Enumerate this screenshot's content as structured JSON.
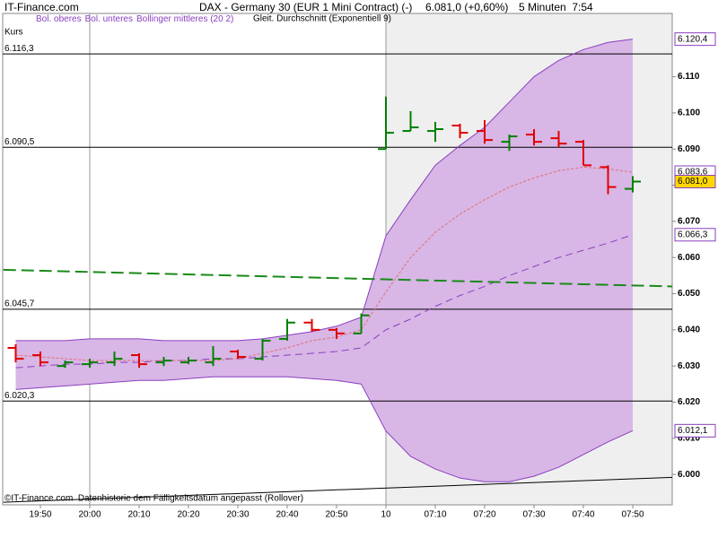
{
  "chart_data": {
    "type": "ohlc",
    "site": "IT-Finance.com",
    "title": "DAX - Germany 30 (EUR 1 Mini Contract) (-)",
    "quote": "6.081,0 (+0,60%)",
    "timeframe": "5 Minuten  7:54",
    "price_label": "Kurs",
    "footnote": "©IT-Finance.com  Datenhistorie dem Fälligkeitsdatum angepasst (Rollover)",
    "categories": [
      null,
      "19:50",
      null,
      "20:00",
      null,
      "20:10",
      null,
      "20:20",
      null,
      "20:30",
      null,
      "20:40",
      null,
      "20:50",
      null,
      "10",
      null,
      "07:10",
      null,
      "07:20",
      null,
      "07:30",
      null,
      "07:40",
      null,
      "07:50"
    ],
    "open": [
      6035,
      6033,
      6030,
      6030.5,
      6031,
      6033,
      6031,
      6031,
      6031,
      6034,
      6032,
      6037.5,
      6042,
      6040,
      6039,
      6090,
      6095,
      6095,
      6096.5,
      6095,
      6092,
      6094,
      6093,
      6092,
      6085,
      6079
    ],
    "high": [
      6036,
      6034,
      6031.5,
      6032,
      6034,
      6033.5,
      6032.5,
      6032.5,
      6035.5,
      6034.5,
      6037.5,
      6043,
      6043,
      6040.5,
      6044.5,
      6104.5,
      6100.5,
      6097.5,
      6097,
      6098,
      6094,
      6095.5,
      6095,
      6092.5,
      6085.5,
      6082.5
    ],
    "low": [
      6031,
      6030,
      6029.5,
      6029.5,
      6030,
      6029.5,
      6030,
      6030.5,
      6030,
      6032,
      6031.5,
      6037,
      6039.5,
      6037.5,
      6039,
      6090,
      6095,
      6092,
      6093,
      6091.5,
      6089.5,
      6091,
      6090.5,
      6085.5,
      6077.5,
      6078
    ],
    "close": [
      6032,
      6031,
      6031,
      6031,
      6032,
      6030.5,
      6031.5,
      6031.5,
      6032,
      6032.5,
      6037,
      6042,
      6040,
      6039,
      6044,
      6094.5,
      6096,
      6095.5,
      6094.5,
      6092.5,
      6093.5,
      6092,
      6091.5,
      6085.5,
      6079.5,
      6081
    ],
    "up_color": "#008000",
    "down_color": "#e00000",
    "band_fill": "#d8b6e6",
    "series": [
      {
        "name": "Bol. oberes",
        "color": "#8a3fc0",
        "dash": "none",
        "values": [
          6037,
          6037,
          6037,
          6037.5,
          6037.5,
          6037.5,
          6037,
          6037,
          6037,
          6037,
          6037.5,
          6038.5,
          6039.5,
          6041,
          6043.5,
          6066,
          6076,
          6085.5,
          6091,
          6096,
          6103,
          6110,
          6114.5,
          6117.5,
          6119.5,
          6120.4
        ]
      },
      {
        "name": "Bol. unteres",
        "color": "#8a3fc0",
        "dash": "none",
        "values": [
          6023.5,
          6024,
          6024.5,
          6025,
          6025.5,
          6026,
          6026,
          6026.5,
          6027,
          6027,
          6027,
          6027,
          6026.5,
          6026,
          6025,
          6012,
          6005,
          6001.5,
          5999,
          5998,
          5998,
          5999.5,
          6002,
          6005.5,
          6009,
          6012.1
        ]
      },
      {
        "name": "Bollinger mittleres (20 2)",
        "color": "#8a3fc0",
        "dash": "8,5",
        "values": [
          6029.5,
          6030,
          6030.5,
          6030.5,
          6031,
          6031,
          6031.5,
          6031.5,
          6032,
          6032,
          6032.5,
          6033,
          6033.5,
          6034,
          6035,
          6040,
          6043,
          6046.5,
          6049.5,
          6052,
          6055,
          6057.5,
          6060,
          6062,
          6064,
          6066.3
        ]
      },
      {
        "name": "Gleit. Durchschnitt (Exponentiell 9)",
        "color": "#e07070",
        "dash": "3,2",
        "values": [
          6033,
          6032.5,
          6032,
          6031.5,
          6031.5,
          6031.5,
          6031.5,
          6031.5,
          6031.5,
          6032,
          6033.5,
          6035,
          6037,
          6038,
          6040,
          6050.5,
          6060,
          6067,
          6072,
          6076,
          6079.5,
          6082,
          6084,
          6085,
          6084.5,
          6083.6
        ]
      },
      {
        "color": "#1a8a1a",
        "dash": "14,6",
        "x": [
          -0.5,
          26.6
        ],
        "values": [
          6056.6,
          6052
        ]
      },
      {
        "color": "#000000",
        "dash": "none",
        "x": [
          -0.5,
          26.6
        ],
        "values": [
          5992.3,
          5999.2
        ]
      }
    ],
    "levels": [
      {
        "value": 6116.3,
        "label": "6.116,3"
      },
      {
        "value": 6090.5,
        "label": "6.090,5"
      },
      {
        "value": 6045.7,
        "label": "6.045,7"
      },
      {
        "value": 6020.3,
        "label": "6.020,3"
      }
    ],
    "markers": [
      {
        "value": 6120.4,
        "label": "6.120,4",
        "fill": "#ffffff",
        "text_color": "#6a2a9a"
      },
      {
        "value": 6083.6,
        "label": "6.083,6",
        "fill": "#ffffff",
        "text_color": "#e07070"
      },
      {
        "value": 6081.0,
        "label": "6.081,0",
        "fill": "#ffd700",
        "text_color": "#000000"
      },
      {
        "value": 6066.3,
        "label": "6.066,3",
        "fill": "#ffffff",
        "text_color": "#6a2a9a"
      },
      {
        "value": 6012.1,
        "label": "6.012,1",
        "fill": "#ffffff",
        "text_color": "#6a2a9a"
      }
    ],
    "shade_from": 15,
    "vlines": [
      3,
      15
    ],
    "ylim": [
      5991.6,
      6127.5
    ],
    "yticks": [
      {
        "value": 6000,
        "label": "6.000"
      },
      {
        "value": 6010,
        "label": "6.010"
      },
      {
        "value": 6020,
        "label": "6.020"
      },
      {
        "value": 6030,
        "label": "6.030"
      },
      {
        "value": 6040,
        "label": "6.040"
      },
      {
        "value": 6050,
        "label": "6.050"
      },
      {
        "value": 6060,
        "label": "6.060"
      },
      {
        "value": 6070,
        "label": "6.070"
      },
      {
        "value": 6080,
        "label": "6.080"
      },
      {
        "value": 6090,
        "label": "6.090"
      },
      {
        "value": 6100,
        "label": "6.100"
      },
      {
        "value": 6110,
        "label": "6.110"
      }
    ]
  }
}
